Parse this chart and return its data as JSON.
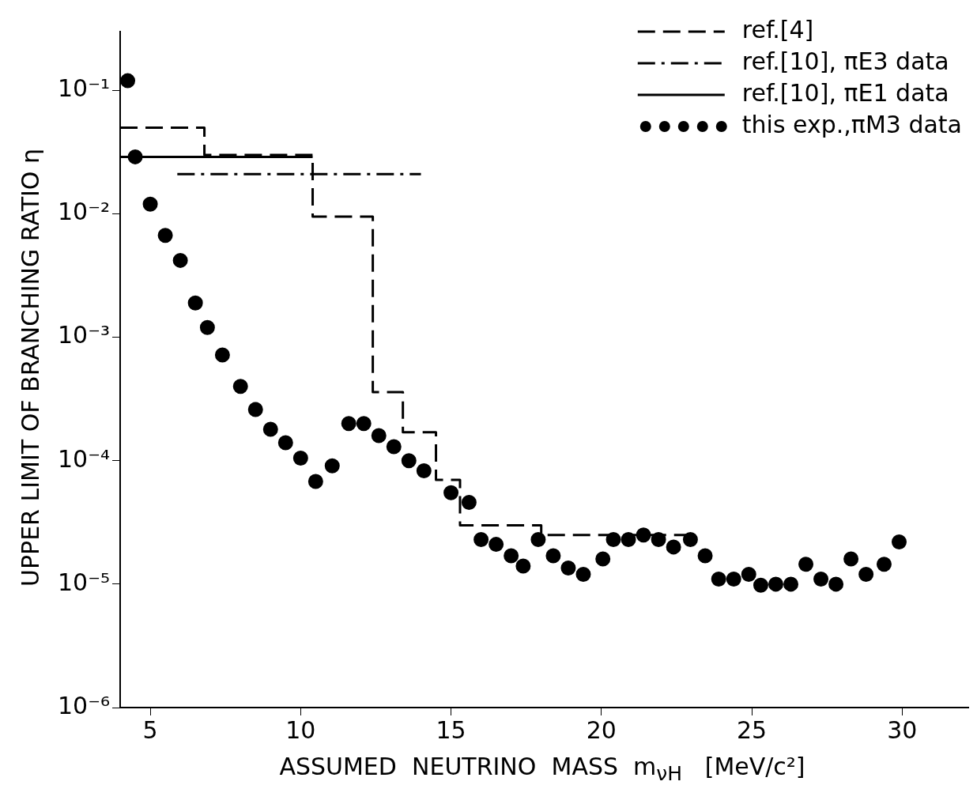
{
  "chart_data": {
    "type": "scatter",
    "xlabel": "ASSUMED  NEUTRINO  MASS  m$_{νH}$   [MeV/c²]",
    "ylabel": "UPPER LIMIT OF BRANCHING RATIO η",
    "log": "y",
    "grid": false,
    "legend": "top right",
    "xlim": [
      4,
      32.2
    ],
    "xticks": [
      5,
      10,
      15,
      20,
      25,
      30
    ],
    "ylim": [
      1e-06,
      0.3
    ],
    "yticks": [
      {
        "value": 1e-06,
        "label": "10⁻⁶"
      },
      {
        "value": 1e-05,
        "label": "10⁻⁵"
      },
      {
        "value": 0.0001,
        "label": "10⁻⁴"
      },
      {
        "value": 0.001,
        "label": "10⁻³"
      },
      {
        "value": 0.01,
        "label": "10⁻²"
      },
      {
        "value": 0.1,
        "label": "10⁻¹"
      }
    ],
    "series": [
      {
        "name": "ref.[4]",
        "type": "step",
        "color": "#000000",
        "line_style": "dashed",
        "marker": "none",
        "x": [
          4,
          6.8,
          10.4,
          12.4,
          13.4,
          14.5,
          15.3,
          18,
          23.2
        ],
        "values": [
          0.05,
          0.03,
          0.0095,
          0.00036,
          0.00017,
          7e-05,
          3e-05,
          2.5e-05,
          2.5e-05
        ]
      },
      {
        "name": "ref.[10], πE3 data",
        "type": "line",
        "color": "#000000",
        "line_style": "dashdot",
        "marker": "none",
        "x": [
          5.9,
          14
        ],
        "values": [
          0.021,
          0.021
        ]
      },
      {
        "name": "ref.[10], πE1 data",
        "type": "line",
        "color": "#000000",
        "line_style": "solid",
        "marker": "none",
        "x": [
          4,
          10.4
        ],
        "values": [
          0.029,
          0.029
        ]
      },
      {
        "name": "this exp.,πM3 data",
        "color": "#000000",
        "marker": "circle",
        "x": [
          4.25,
          4.5,
          5,
          5.5,
          6,
          6.5,
          6.9,
          7.4,
          8,
          8.5,
          9,
          9.5,
          10,
          10.5,
          11.05,
          11.6,
          12.1,
          12.6,
          13.1,
          13.6,
          14.1,
          15,
          15.6,
          16,
          16.5,
          17,
          17.4,
          17.9,
          18.4,
          18.9,
          19.4,
          20.05,
          20.4,
          20.9,
          21.4,
          21.9,
          22.4,
          22.96,
          23.45,
          23.9,
          24.4,
          24.9,
          25.3,
          25.8,
          26.3,
          26.8,
          27.3,
          27.8,
          28.3,
          28.8,
          29.4,
          29.9
        ],
        "values": [
          0.12,
          0.029,
          0.012,
          0.0067,
          0.0042,
          0.0019,
          0.0012,
          0.00072,
          0.0004,
          0.00026,
          0.00018,
          0.00014,
          0.000105,
          6.8e-05,
          9.1e-05,
          0.0002,
          0.0002,
          0.00016,
          0.00013,
          0.0001,
          8.3e-05,
          5.5e-05,
          4.6e-05,
          2.3e-05,
          2.1e-05,
          1.7e-05,
          1.4e-05,
          2.3e-05,
          1.7e-05,
          1.35e-05,
          1.2e-05,
          1.6e-05,
          2.3e-05,
          2.3e-05,
          2.5e-05,
          2.3e-05,
          2e-05,
          2.3e-05,
          1.7e-05,
          1.1e-05,
          1.1e-05,
          1.2e-05,
          9.8e-06,
          1e-05,
          1e-05,
          1.45e-05,
          1.1e-05,
          1e-05,
          1.6e-05,
          1.2e-05,
          1.45e-05,
          2.2e-05
        ]
      }
    ]
  }
}
